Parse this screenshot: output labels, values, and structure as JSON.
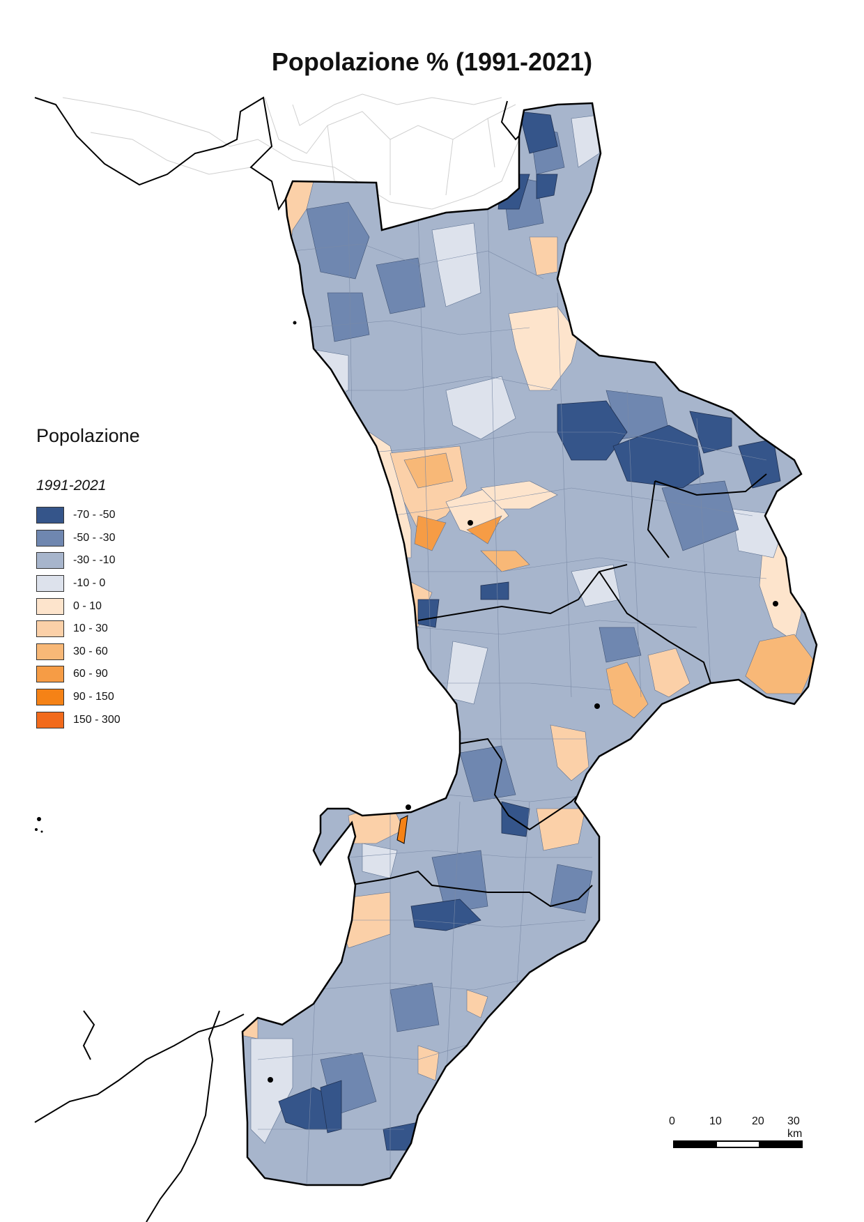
{
  "title": "Popolazione % (1991-2021)",
  "legend": {
    "title": "Popolazione",
    "subtitle": "1991-2021",
    "classes": [
      {
        "label": "-70 - -50",
        "color": "#35558a"
      },
      {
        "label": "-50 - -30",
        "color": "#6f87b0"
      },
      {
        "label": "-30 - -10",
        "color": "#a7b5cc"
      },
      {
        "label": "-10 - 0",
        "color": "#dde2ec"
      },
      {
        "label": "0 - 10",
        "color": "#fde4cc"
      },
      {
        "label": "10 - 30",
        "color": "#fbd0a8"
      },
      {
        "label": "30 - 60",
        "color": "#f8b877"
      },
      {
        "label": "60 - 90",
        "color": "#f69c45"
      },
      {
        "label": "90 - 150",
        "color": "#f58216"
      },
      {
        "label": "150 - 300",
        "color": "#f26a1b"
      }
    ]
  },
  "scale": {
    "labels": [
      "0",
      "10",
      "20",
      "30 km"
    ]
  },
  "colors": {
    "background": "#ffffff",
    "boundary": "#000000",
    "neighbor_outline": "#cfcfcf"
  }
}
